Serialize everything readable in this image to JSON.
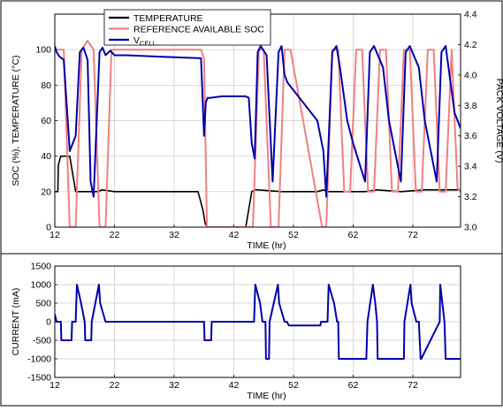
{
  "chart_data": [
    {
      "type": "line",
      "xlabel": "TIME (hr)",
      "ylabel": "SOC (%), TEMPERATURE (°C)",
      "y2label": "PACK VOLTAGE (V)",
      "xlim": [
        12,
        80
      ],
      "ylim": [
        0,
        120
      ],
      "y2lim": [
        3.0,
        4.4
      ],
      "x_ticks": [
        "12",
        "22",
        "32",
        "42",
        "52",
        "62",
        "72"
      ],
      "y_ticks": [
        "0",
        "20",
        "40",
        "60",
        "80",
        "100"
      ],
      "y2_ticks": [
        "3.0",
        "3.2",
        "3.4",
        "3.6",
        "3.8",
        "4.0",
        "4.2",
        "4.4"
      ],
      "grid": true,
      "legend_position": "top-center",
      "legend": [
        {
          "label": "TEMPERATURE",
          "sub": "",
          "color": "#000000"
        },
        {
          "label": "REFERENCE AVAILABLE SOC",
          "sub": "",
          "color": "#f08080"
        },
        {
          "label": "V",
          "sub": "CELL",
          "color": "#0000aa"
        }
      ],
      "series": [
        {
          "name": "TEMPERATURE",
          "axis": "left",
          "color": "#000000",
          "x": [
            12,
            12.5,
            12.6,
            13,
            13.5,
            14.5,
            15.5,
            16,
            16.5,
            19,
            20,
            22,
            36,
            36.8,
            37.2,
            37.6,
            38,
            44,
            44.5,
            45,
            45.5,
            46,
            50,
            56,
            57,
            58,
            64,
            66,
            70,
            74,
            78,
            80
          ],
          "y": [
            20,
            20,
            35,
            40,
            40,
            40,
            20,
            20,
            20,
            20,
            21,
            20,
            20,
            10,
            2,
            0,
            0,
            0,
            10,
            20,
            21,
            21,
            20,
            20,
            21,
            20,
            20,
            21,
            20,
            21,
            21,
            21
          ]
        },
        {
          "name": "REFERENCE AVAILABLE SOC",
          "axis": "left",
          "color": "#f08080",
          "x": [
            12,
            12.5,
            13.5,
            14.5,
            15.5,
            16.5,
            17.5,
            18.5,
            19.5,
            20.5,
            21.5,
            36.5,
            37,
            37.5,
            38,
            44,
            45.2,
            46.2,
            47,
            48.2,
            49.5,
            50.5,
            51.5,
            56.8,
            57.5,
            58.5,
            59.5,
            60.5,
            61.5,
            62.5,
            63.5,
            64.5,
            65.5,
            66.5,
            67.5,
            68.5,
            69.5,
            70.5,
            71.5,
            72.5,
            73.5,
            74.5,
            75.5,
            76.5,
            77.5,
            78.5,
            79.5,
            80
          ],
          "y": [
            100,
            100,
            100,
            0,
            0,
            100,
            105,
            100,
            0,
            0,
            100,
            100,
            95,
            0,
            0,
            0,
            0,
            100,
            100,
            0,
            0,
            100,
            100,
            0,
            0,
            100,
            100,
            20,
            20,
            100,
            100,
            20,
            20,
            100,
            100,
            20,
            20,
            100,
            100,
            20,
            20,
            100,
            100,
            20,
            20,
            100,
            22,
            20
          ]
        },
        {
          "name": "VCELL",
          "axis": "right",
          "color": "#0000aa",
          "x": [
            12,
            12.3,
            12.8,
            13.5,
            14.5,
            15.5,
            16.2,
            16.8,
            17.5,
            18,
            18.5,
            19.5,
            20,
            20.5,
            21.3,
            22,
            24,
            30,
            36.5,
            37,
            37.3,
            37.6,
            38,
            40,
            44,
            44.5,
            45,
            45.5,
            46,
            46.5,
            47.5,
            48.5,
            49.5,
            50,
            50.5,
            51,
            52,
            54,
            56,
            56.5,
            57,
            57.5,
            58.5,
            59.2,
            59.8,
            61,
            62,
            64,
            64.8,
            65.5,
            67,
            68,
            70,
            70.8,
            71.5,
            73,
            74,
            76,
            76.8,
            77.5,
            79,
            80
          ],
          "y": [
            4.19,
            4.15,
            4.12,
            4.1,
            3.5,
            3.6,
            4.15,
            4.18,
            4.1,
            3.3,
            3.2,
            4.15,
            4.18,
            4.13,
            4.16,
            4.13,
            4.13,
            4.12,
            4.11,
            3.6,
            3.82,
            3.85,
            3.85,
            3.86,
            3.86,
            3.85,
            3.55,
            3.45,
            4.15,
            4.19,
            4.13,
            3.3,
            4.15,
            4.19,
            4.0,
            3.95,
            3.9,
            3.8,
            3.7,
            3.6,
            3.5,
            3.2,
            4.15,
            4.19,
            4.05,
            3.7,
            3.55,
            3.3,
            4.15,
            4.19,
            4.05,
            3.7,
            3.3,
            4.15,
            4.19,
            4.05,
            3.7,
            3.3,
            4.15,
            4.19,
            3.75,
            3.65
          ]
        }
      ]
    },
    {
      "type": "line",
      "xlabel": "TIME (hr)",
      "ylabel": "CURRENT (mA)",
      "xlim": [
        12,
        80
      ],
      "ylim": [
        -1500,
        1500
      ],
      "x_ticks": [
        "12",
        "22",
        "32",
        "42",
        "52",
        "62",
        "72"
      ],
      "y_ticks": [
        "-1500",
        "-1000",
        "-500",
        "0",
        "500",
        "1000",
        "1500"
      ],
      "grid": true,
      "series": [
        {
          "color": "#0000aa",
          "x": [
            12,
            12.3,
            13,
            13.1,
            14.8,
            14.9,
            15.5,
            15.7,
            16.4,
            17,
            17.1,
            18.1,
            18.2,
            19.4,
            19.6,
            20.5,
            21.1,
            21.2,
            37,
            37.1,
            38.2,
            38.3,
            45.4,
            45.6,
            46.4,
            46.8,
            47.3,
            47.4,
            47.9,
            48,
            49.4,
            49.6,
            50.5,
            50.9,
            51.2,
            51.3,
            56.5,
            56.6,
            57.7,
            57.9,
            58.8,
            59.3,
            59.5,
            59.6,
            64.2,
            64.4,
            65.3,
            65.7,
            66,
            66.1,
            70.5,
            70.6,
            71.6,
            71.8,
            72.6,
            73,
            73.3,
            73.4,
            76.5,
            76.6,
            77.3,
            77.5,
            80
          ],
          "y": [
            200,
            0,
            0,
            -500,
            -500,
            0,
            0,
            1000,
            500,
            0,
            -500,
            -500,
            0,
            1000,
            500,
            0,
            0,
            0,
            0,
            -500,
            -500,
            0,
            0,
            1000,
            500,
            0,
            0,
            -1000,
            -1000,
            0,
            1000,
            500,
            0,
            0,
            -100,
            -100,
            -100,
            0,
            0,
            1000,
            500,
            0,
            0,
            -1000,
            -1000,
            0,
            1000,
            500,
            0,
            -1000,
            -1000,
            0,
            1000,
            500,
            0,
            0,
            -1000,
            -1000,
            0,
            1000,
            0,
            -1000,
            -1000
          ]
        }
      ]
    }
  ]
}
